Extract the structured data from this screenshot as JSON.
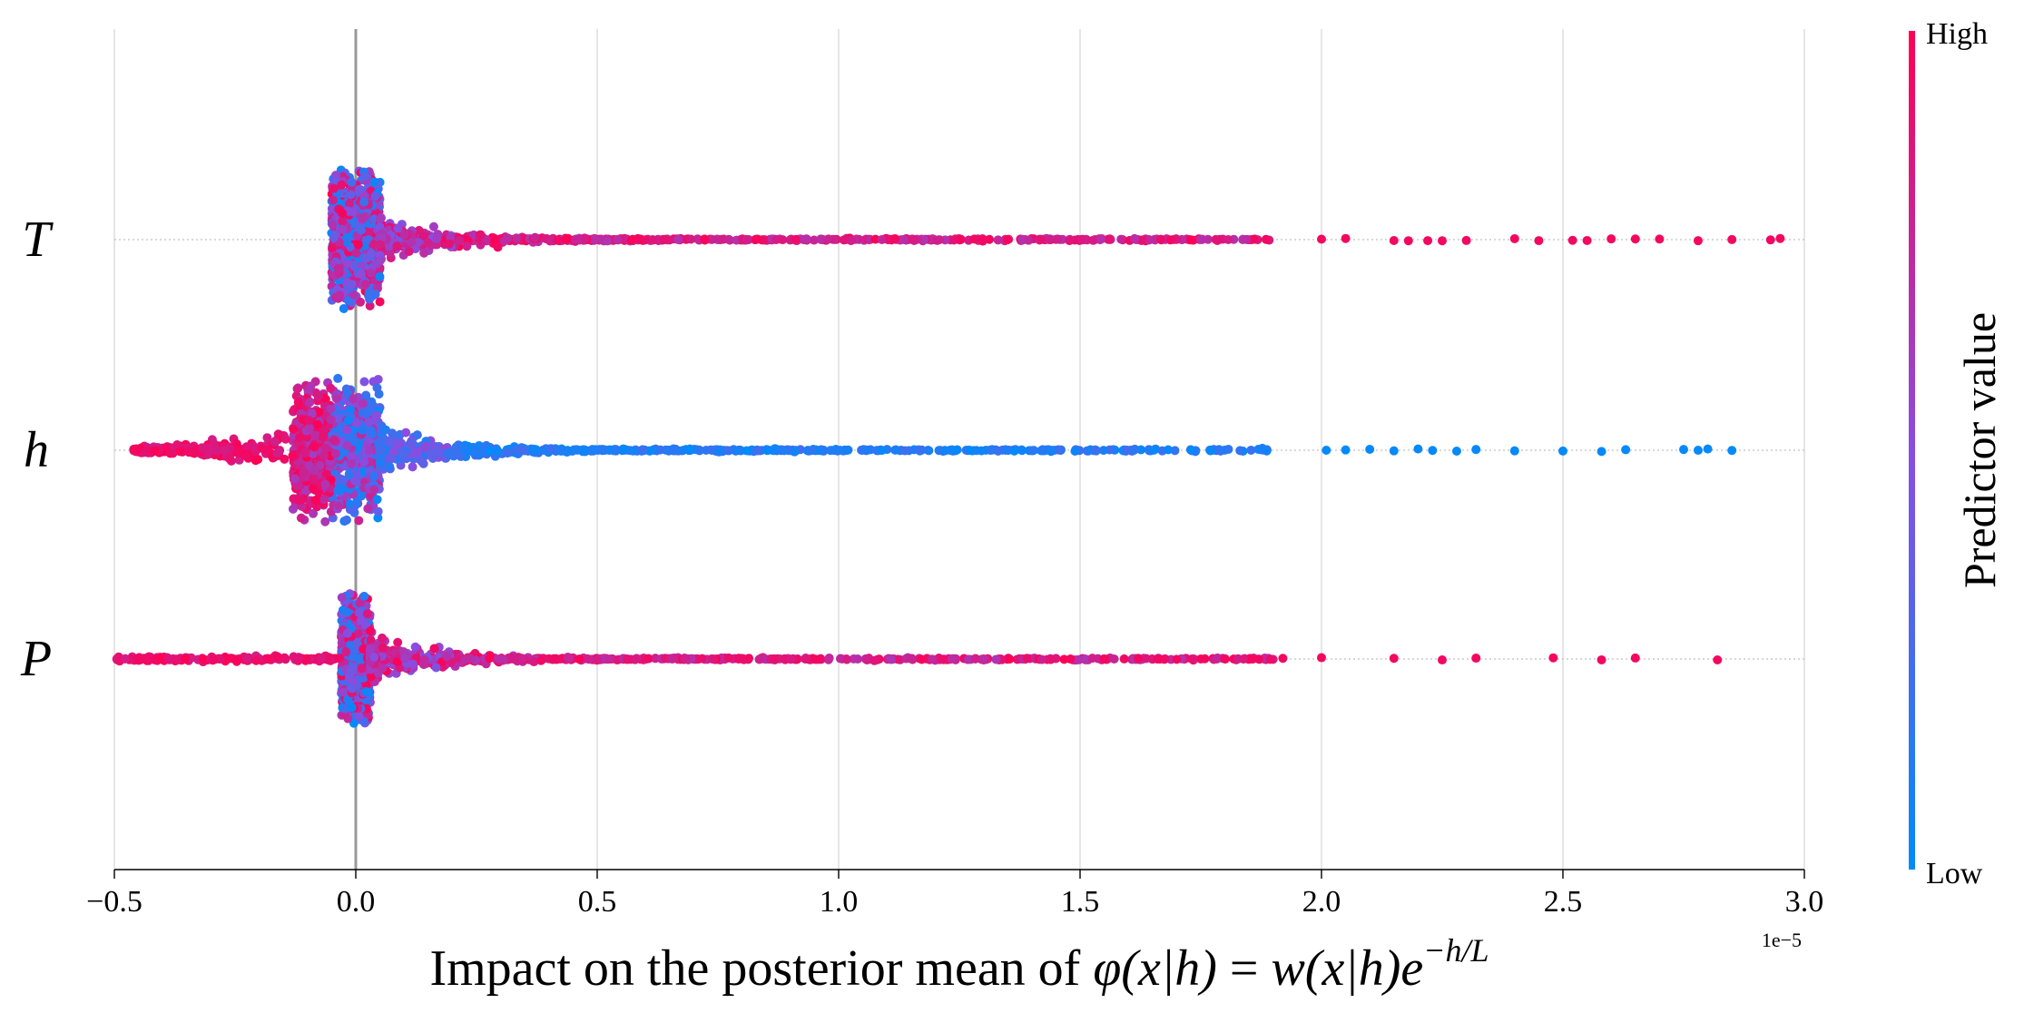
{
  "chart_data": {
    "type": "scatter",
    "subtype": "beeswarm",
    "x_offset_label": "1e−5",
    "xlabel": {
      "prefix": "Impact on the posterior mean of ",
      "math_lhs": "φ(x|h)",
      "equals": " = ",
      "math_rhs": "w(x|h)e",
      "exponent": "−h/L"
    },
    "xlim": [
      -0.5,
      3.0
    ],
    "xticks": [
      -0.5,
      0.0,
      0.5,
      1.0,
      1.5,
      2.0,
      2.5,
      3.0
    ],
    "xtick_labels": [
      "−0.5",
      "0.0",
      "0.5",
      "1.0",
      "1.5",
      "2.0",
      "2.5",
      "3.0"
    ],
    "vertical_gridlines": true,
    "zero_line": true,
    "features": [
      {
        "name": "T",
        "core_range": [
          -0.05,
          0.05
        ],
        "tail": [
          0.05,
          2.95
        ],
        "tail_direction": "right",
        "tail_value_trend": "high",
        "outliers": [
          2.0,
          2.05,
          2.15,
          2.18,
          2.22,
          2.25,
          2.3,
          2.4,
          2.45,
          2.52,
          2.55,
          2.6,
          2.65,
          2.7,
          2.78,
          2.85,
          2.93,
          2.95
        ]
      },
      {
        "name": "h",
        "core_range": [
          -0.13,
          0.05
        ],
        "tail": [
          0.05,
          2.85
        ],
        "tail_direction": "both",
        "left_tail": [
          -0.46,
          -0.13
        ],
        "tail_value_trend": "low",
        "left_value_trend": "high",
        "outliers": [
          2.01,
          2.05,
          2.1,
          2.15,
          2.2,
          2.23,
          2.28,
          2.32,
          2.4,
          2.5,
          2.58,
          2.63,
          2.75,
          2.78,
          2.8,
          2.85
        ]
      },
      {
        "name": "P",
        "core_range": [
          -0.03,
          0.03
        ],
        "tail": [
          0.03,
          2.82
        ],
        "tail_direction": "both",
        "left_tail": [
          -0.5,
          -0.03
        ],
        "tail_value_trend": "high",
        "left_value_trend": "high",
        "outliers": [
          1.48,
          1.55,
          1.62,
          1.66,
          1.7,
          1.75,
          1.8,
          1.87,
          1.92,
          2.0,
          2.15,
          2.25,
          2.32,
          2.48,
          2.58,
          2.65,
          2.82
        ]
      }
    ],
    "colorbar": {
      "title": "Predictor value",
      "high_label": "High",
      "low_label": "Low",
      "high_color": "#ff0052",
      "low_color": "#008bfb"
    }
  }
}
